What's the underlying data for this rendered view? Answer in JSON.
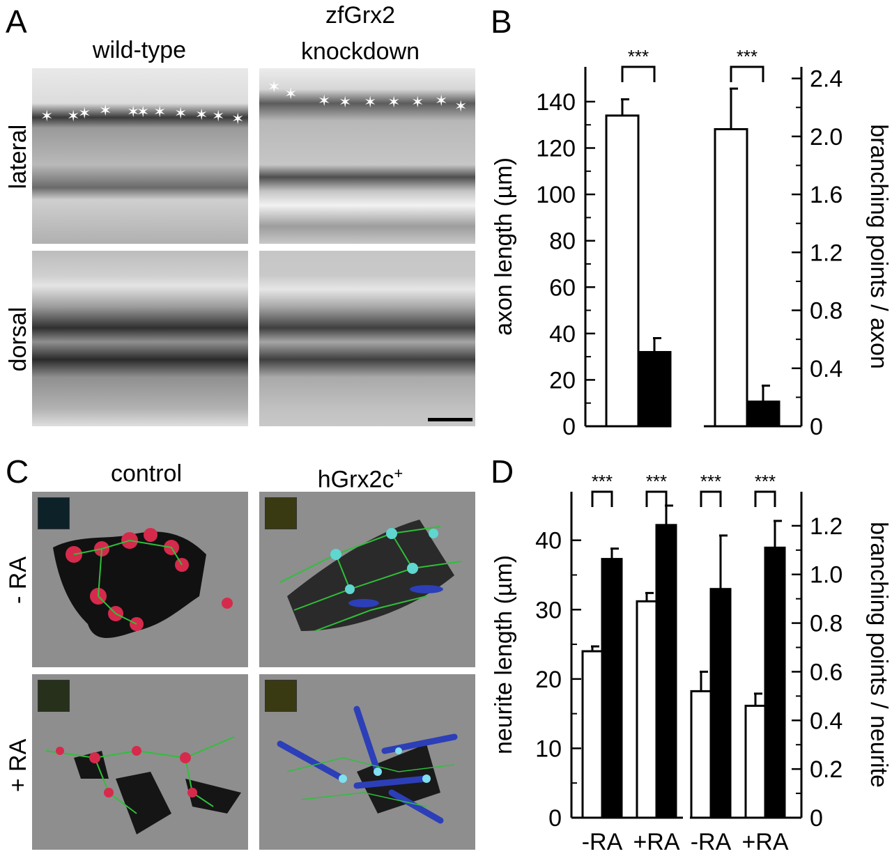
{
  "panels": {
    "A": {
      "letter": "A",
      "col_wildtype": "wild-type",
      "col_knockdown_line1": "zfGrx2",
      "col_knockdown_line2": "knockdown",
      "row_lateral": "lateral",
      "row_dorsal": "dorsal"
    },
    "B": {
      "letter": "B"
    },
    "C": {
      "letter": "C",
      "col_control": "control",
      "col_hgrx": "hGrx2c",
      "col_hgrx_sup": "+",
      "row_minus": "- RA",
      "row_plus": "+ RA"
    },
    "D": {
      "letter": "D"
    }
  },
  "chart_data": [
    {
      "panel": "B",
      "type": "bar",
      "left_axis": {
        "label": "axon length (µm)",
        "ylim": [
          0,
          155
        ],
        "ticks": [
          "0",
          "20",
          "40",
          "60",
          "80",
          "100",
          "120",
          "140"
        ],
        "tick_values": [
          0,
          20,
          40,
          60,
          80,
          100,
          120,
          140
        ]
      },
      "right_axis": {
        "label": "branching points / axon",
        "ylim": [
          0,
          2.48
        ],
        "ticks": [
          "0",
          "0.4",
          "0.8",
          "1.2",
          "1.6",
          "2.0",
          "2.4"
        ],
        "tick_values": [
          0,
          0.4,
          0.8,
          1.2,
          1.6,
          2.0,
          2.4
        ]
      },
      "groups": [
        {
          "axis": "left",
          "white": 134,
          "white_err": 7,
          "black": 32,
          "black_err": 6,
          "significance": "***"
        },
        {
          "axis": "right",
          "white": 2.05,
          "white_err": 0.28,
          "black": 0.17,
          "black_err": 0.11,
          "significance": "***"
        }
      ]
    },
    {
      "panel": "D",
      "type": "bar",
      "left_axis": {
        "label": "neurite length (µm)",
        "ylim": [
          0,
          47
        ],
        "ticks": [
          "0",
          "10",
          "20",
          "30",
          "40"
        ],
        "tick_values": [
          0,
          10,
          20,
          30,
          40
        ]
      },
      "right_axis": {
        "label": "branching points / neurite",
        "ylim": [
          0,
          1.34
        ],
        "ticks": [
          "0",
          "0.2",
          "0.4",
          "0.6",
          "0.8",
          "1.0",
          "1.2"
        ],
        "tick_values": [
          0,
          0.2,
          0.4,
          0.6,
          0.8,
          1.0,
          1.2
        ]
      },
      "categories": [
        "-RA",
        "+RA",
        "-RA",
        "+RA"
      ],
      "groups": [
        {
          "axis": "left",
          "white": 24,
          "white_err": 0.7,
          "black": 37.3,
          "black_err": 1.5,
          "significance": "***"
        },
        {
          "axis": "left",
          "white": 31.2,
          "white_err": 1.2,
          "black": 42.2,
          "black_err": 2.8,
          "significance": "***"
        },
        {
          "axis": "right",
          "white": 0.52,
          "white_err": 0.08,
          "black": 0.94,
          "black_err": 0.22,
          "significance": "***"
        },
        {
          "axis": "right",
          "white": 0.46,
          "white_err": 0.05,
          "black": 1.11,
          "black_err": 0.11,
          "significance": "***"
        }
      ]
    }
  ]
}
